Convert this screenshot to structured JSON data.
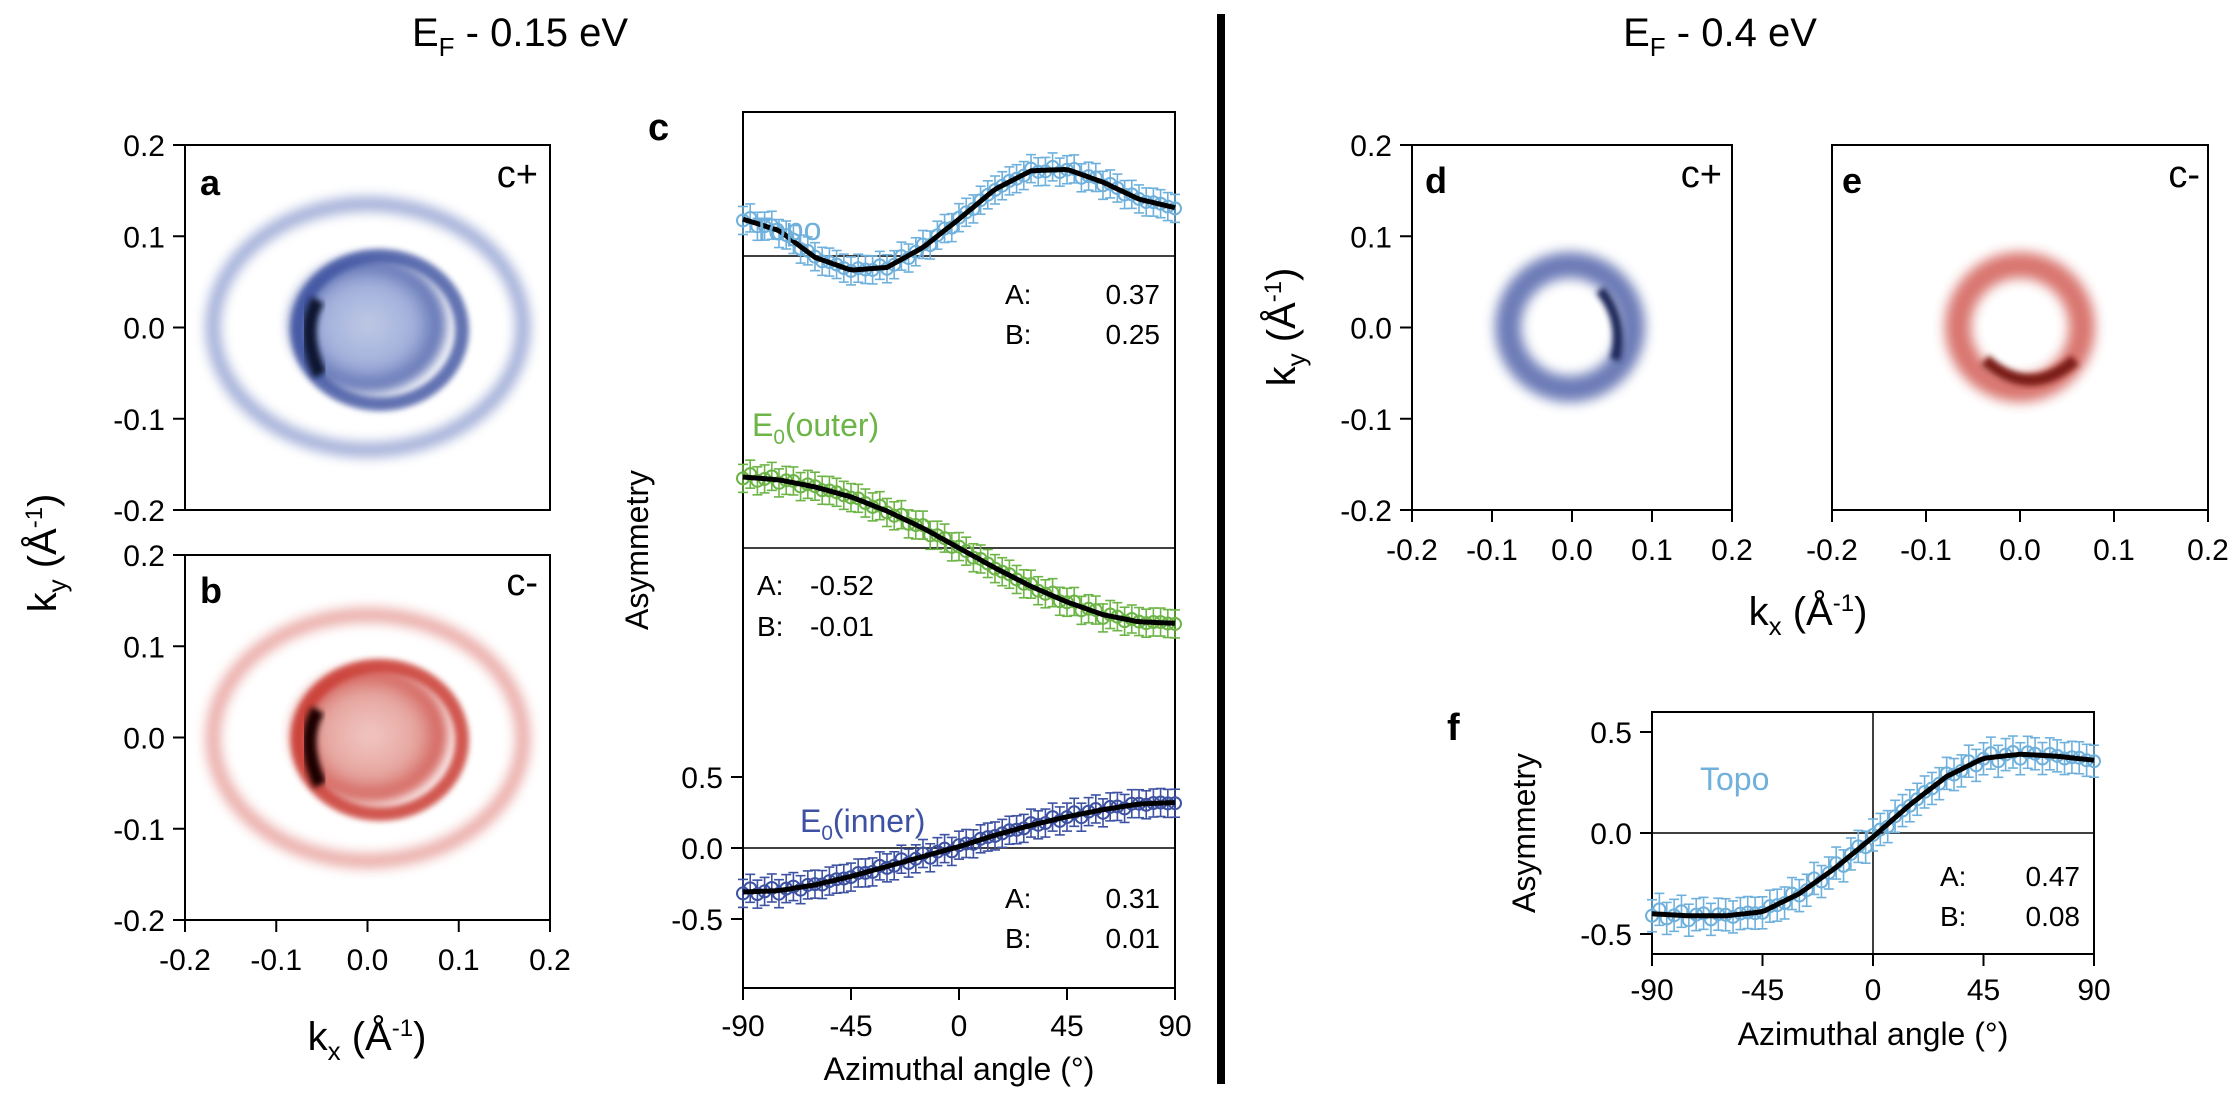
{
  "header": {
    "left": {
      "base": "E",
      "sub": "F",
      "rest": " - 0.15 eV"
    },
    "right": {
      "base": "E",
      "sub": "F",
      "rest": " - 0.4 eV"
    }
  },
  "labels": {
    "ky_left": {
      "base": "k",
      "sub": "y",
      "rest": " (Å",
      "sup": "-1",
      "end": ")"
    },
    "kx_left": {
      "base": "k",
      "sub": "x",
      "rest": " (Å",
      "sup": "-1",
      "end": ")"
    },
    "ky_right": {
      "base": "k",
      "sub": "y",
      "rest": " (Å",
      "sup": "-1",
      "end": ")"
    },
    "kx_right": {
      "base": "k",
      "sub": "x",
      "rest": " (Å",
      "sup": "-1",
      "end": ")"
    },
    "asym_c": "Asymmetry",
    "asym_f": "Asymmetry",
    "azim_c": "Azimuthal angle (°)",
    "azim_f": "Azimuthal angle (°)"
  },
  "panels": {
    "a": {
      "letter": "a",
      "pol": "c+",
      "pol_color": "#2b4c9b"
    },
    "b": {
      "letter": "b",
      "pol": "c-",
      "pol_color": "#c7322e"
    },
    "c": {
      "letter": "c"
    },
    "d": {
      "letter": "d",
      "pol": "c+",
      "pol_color": "#2b4c9b"
    },
    "e": {
      "letter": "e",
      "pol": "c-",
      "pol_color": "#c7322e"
    },
    "f": {
      "letter": "f"
    }
  },
  "map_ticks": [
    "-0.2",
    "-0.1",
    "0.0",
    "0.1",
    "0.2"
  ],
  "angle_ticks": [
    "-90",
    "-45",
    "0",
    "45",
    "90"
  ],
  "asym_ticks_c": [
    "-0.5",
    "0.0",
    "0.5"
  ],
  "asym_ticks_f": [
    "-0.5",
    "0.0",
    "0.5"
  ],
  "colors": {
    "topo": "#6fb1dc",
    "outer": "#6cb546",
    "inner": "#3e52a3",
    "fit": "#000000",
    "blue_map": "#3a4f9f",
    "red_map": "#c93a33"
  },
  "chart_data": [
    {
      "type": "line",
      "panel": "c",
      "title": "E_F - 0.15 eV",
      "xlabel": "Azimuthal angle (°)",
      "ylabel": "Asymmetry",
      "xlim": [
        -90,
        90
      ],
      "series": [
        {
          "name": "Topo",
          "base": "Topo",
          "sub": "",
          "rest": "",
          "A_label": "A:",
          "A": "0.37",
          "B_label": "B:",
          "B": "0.25",
          "x": [
            -90,
            -75,
            -60,
            -45,
            -30,
            -15,
            0,
            15,
            30,
            45,
            60,
            75,
            90
          ],
          "y": [
            0.26,
            0.18,
            -0.01,
            -0.1,
            -0.08,
            0.06,
            0.26,
            0.47,
            0.6,
            0.61,
            0.52,
            0.4,
            0.34
          ]
        },
        {
          "name": "E0(outer)",
          "base": "E",
          "sub": "0",
          "rest": "(outer)",
          "A_label": "A:",
          "A": "-0.52",
          "B_label": "B:",
          "B": "-0.01",
          "x": [
            -90,
            -75,
            -60,
            -45,
            -30,
            -15,
            0,
            15,
            30,
            45,
            60,
            75,
            90
          ],
          "y": [
            0.5,
            0.48,
            0.43,
            0.36,
            0.26,
            0.14,
            0.0,
            -0.14,
            -0.27,
            -0.38,
            -0.47,
            -0.52,
            -0.53
          ]
        },
        {
          "name": "E0(inner)",
          "base": "E",
          "sub": "0",
          "rest": "(inner)",
          "A_label": "A:",
          "A": "0.31",
          "B_label": "B:",
          "B": "0.01",
          "x": [
            -90,
            -75,
            -60,
            -45,
            -30,
            -15,
            0,
            15,
            30,
            45,
            60,
            75,
            90
          ],
          "y": [
            -0.31,
            -0.3,
            -0.26,
            -0.2,
            -0.13,
            -0.06,
            0.01,
            0.09,
            0.16,
            0.22,
            0.27,
            0.31,
            0.32
          ]
        }
      ]
    },
    {
      "type": "line",
      "panel": "f",
      "title": "E_F - 0.4 eV",
      "xlabel": "Azimuthal angle (°)",
      "ylabel": "Asymmetry",
      "xlim": [
        -90,
        90
      ],
      "ylim": [
        -0.6,
        0.6
      ],
      "series": [
        {
          "name": "Topo",
          "A_label": "A:",
          "A": "0.47",
          "B_label": "B:",
          "B": "0.08",
          "x": [
            -90,
            -75,
            -60,
            -45,
            -30,
            -15,
            0,
            15,
            30,
            45,
            60,
            75,
            90
          ],
          "y": [
            -0.4,
            -0.41,
            -0.41,
            -0.39,
            -0.3,
            -0.17,
            -0.02,
            0.14,
            0.28,
            0.37,
            0.39,
            0.38,
            0.36
          ]
        }
      ]
    }
  ]
}
